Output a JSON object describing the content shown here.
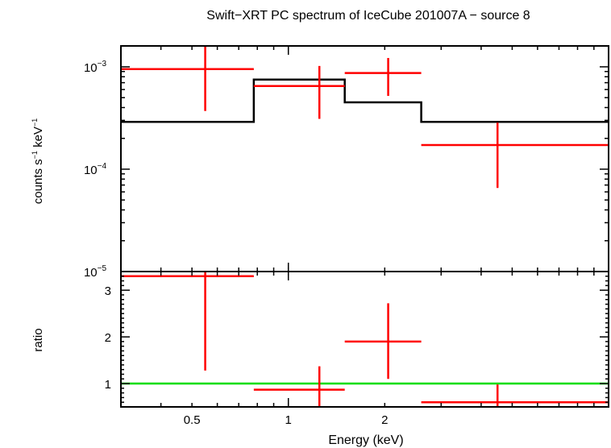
{
  "chart_data": {
    "title": "Swift−XRT PC spectrum of IceCube 201007A − source 8",
    "xlabel": "Energy (keV)",
    "x_scale": "log",
    "xlim": [
      0.3,
      10
    ],
    "x_ticks": [
      {
        "value": 0.5,
        "label": "0.5"
      },
      {
        "value": 1,
        "label": "1"
      },
      {
        "value": 2,
        "label": "2"
      }
    ],
    "colors": {
      "data": "#ff0000",
      "model": "#000000",
      "ratio_line": "#00dd00",
      "axes": "#000000"
    },
    "panels": [
      {
        "name": "spectrum",
        "type": "scatter",
        "ylabel_main": "counts s",
        "ylabel_sup1": "−1",
        "ylabel_mid": " keV",
        "ylabel_sup2": "−1",
        "y_scale": "log",
        "ylim": [
          1e-05,
          0.0016
        ],
        "y_ticks": [
          {
            "value": 0.001,
            "base": "10",
            "exp": "−3"
          },
          {
            "value": 0.0001,
            "base": "10",
            "exp": "−4"
          },
          {
            "value": 1e-05,
            "base": "10",
            "exp": "−5"
          }
        ],
        "data": [
          {
            "x": 0.55,
            "xlo": 0.3,
            "xhi": 0.78,
            "y": 0.00095,
            "ylo": 0.00037,
            "yhi": 0.0016
          },
          {
            "x": 1.25,
            "xlo": 0.78,
            "xhi": 1.5,
            "y": 0.00065,
            "ylo": 0.00031,
            "yhi": 0.00102
          },
          {
            "x": 2.05,
            "xlo": 1.5,
            "xhi": 2.6,
            "y": 0.00087,
            "ylo": 0.00052,
            "yhi": 0.00122
          },
          {
            "x": 4.5,
            "xlo": 2.6,
            "xhi": 10,
            "y": 0.000172,
            "ylo": 6.55e-05,
            "yhi": 0.000285
          }
        ],
        "model": [
          {
            "xlo": 0.3,
            "xhi": 0.78,
            "y": 0.00029
          },
          {
            "xlo": 0.78,
            "xhi": 1.5,
            "y": 0.00075
          },
          {
            "xlo": 1.5,
            "xhi": 2.6,
            "y": 0.00045
          },
          {
            "xlo": 2.6,
            "xhi": 10,
            "y": 0.00029
          }
        ]
      },
      {
        "name": "ratio",
        "type": "scatter",
        "ylabel": "ratio",
        "y_scale": "linear",
        "ylim": [
          0.5,
          3.4
        ],
        "y_ticks": [
          {
            "value": 1,
            "label": "1"
          },
          {
            "value": 2,
            "label": "2"
          },
          {
            "value": 3,
            "label": "3"
          }
        ],
        "reference_line": 1,
        "data": [
          {
            "x": 0.55,
            "xlo": 0.3,
            "xhi": 0.78,
            "y": 3.3,
            "ylo": 1.28,
            "yhi": 3.4
          },
          {
            "x": 1.25,
            "xlo": 0.78,
            "xhi": 1.5,
            "y": 0.87,
            "ylo": 0.45,
            "yhi": 1.37
          },
          {
            "x": 2.05,
            "xlo": 1.5,
            "xhi": 2.6,
            "y": 1.9,
            "ylo": 1.1,
            "yhi": 2.72
          },
          {
            "x": 4.5,
            "xlo": 2.6,
            "xhi": 10,
            "y": 0.6,
            "ylo": 0.45,
            "yhi": 0.98
          }
        ]
      }
    ]
  }
}
